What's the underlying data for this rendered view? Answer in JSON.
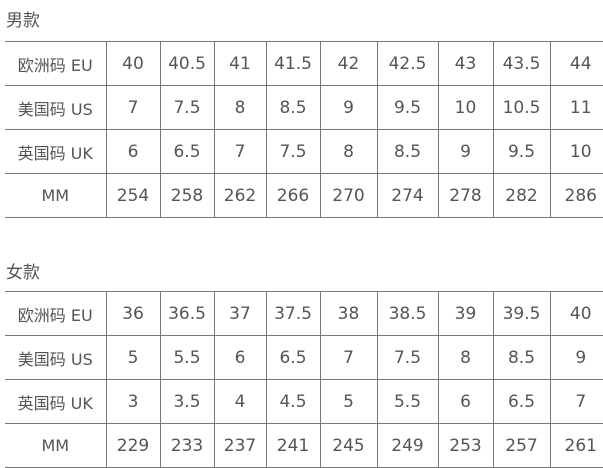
{
  "sections": [
    {
      "title": "男款",
      "rows": [
        {
          "label": "欧洲码 EU",
          "values": [
            "40",
            "40.5",
            "41",
            "41.5",
            "42",
            "42.5",
            "43",
            "43.5",
            "44"
          ]
        },
        {
          "label": "美国码 US",
          "values": [
            "7",
            "7.5",
            "8",
            "8.5",
            "9",
            "9.5",
            "10",
            "10.5",
            "11"
          ]
        },
        {
          "label": "英国码 UK",
          "values": [
            "6",
            "6.5",
            "7",
            "7.5",
            "8",
            "8.5",
            "9",
            "9.5",
            "10"
          ]
        },
        {
          "label": "MM",
          "values": [
            "254",
            "258",
            "262",
            "266",
            "270",
            "274",
            "278",
            "282",
            "286"
          ]
        }
      ]
    },
    {
      "title": "女款",
      "rows": [
        {
          "label": "欧洲码 EU",
          "values": [
            "36",
            "36.5",
            "37",
            "37.5",
            "38",
            "38.5",
            "39",
            "39.5",
            "40"
          ]
        },
        {
          "label": "美国码 US",
          "values": [
            "5",
            "5.5",
            "6",
            "6.5",
            "7",
            "7.5",
            "8",
            "8.5",
            "9"
          ]
        },
        {
          "label": "英国码 UK",
          "values": [
            "3",
            "3.5",
            "4",
            "4.5",
            "5",
            "5.5",
            "6",
            "6.5",
            "7"
          ]
        },
        {
          "label": "MM",
          "values": [
            "229",
            "233",
            "237",
            "241",
            "245",
            "249",
            "253",
            "257",
            "261"
          ]
        }
      ]
    }
  ]
}
